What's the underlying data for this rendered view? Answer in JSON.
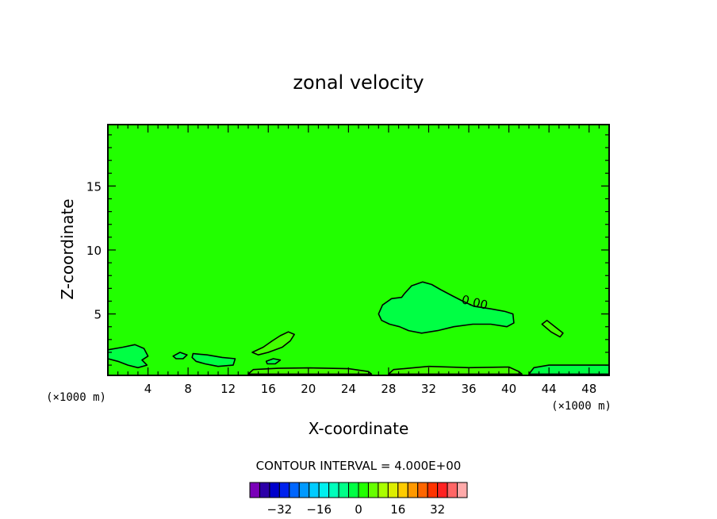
{
  "chart_data": {
    "type": "contour",
    "title": "zonal velocity",
    "xlabel": "X-coordinate",
    "ylabel": "Z-coordinate",
    "x_unit_label": "(×1000 m)",
    "xlim": [
      0,
      50
    ],
    "ylim": [
      0.2,
      19.8
    ],
    "x_ticks": [
      4,
      8,
      12,
      16,
      20,
      24,
      28,
      32,
      36,
      40,
      44,
      48
    ],
    "y_ticks": [
      5,
      10,
      15
    ],
    "field_color": "#22ff00",
    "contour_labels": [
      {
        "text": "0.00",
        "x": 36.5,
        "y": 5.6
      }
    ],
    "contour_interval_label": "CONTOUR INTERVAL = 4.000E+00",
    "colorbar": {
      "colors": [
        "#7a00b8",
        "#2c00a8",
        "#0000cc",
        "#0022ee",
        "#0066ff",
        "#0099ff",
        "#00ccff",
        "#00f0ee",
        "#00ffbb",
        "#00ff88",
        "#00ff44",
        "#22ff00",
        "#66ff00",
        "#aaff00",
        "#ddee00",
        "#ffcc00",
        "#ff9900",
        "#ff6600",
        "#ff3300",
        "#ff2222",
        "#ff6666",
        "#ffaaaa"
      ],
      "tick_values": [
        -32,
        -16,
        0,
        16,
        32
      ],
      "tick_labels": [
        "−32",
        "−16",
        "0",
        "16",
        "32"
      ],
      "range": [
        -44,
        44
      ]
    },
    "regions": [
      {
        "name": "region-negative-large",
        "color": "#00ff44",
        "points": [
          [
            27,
            5.0
          ],
          [
            27.4,
            5.7
          ],
          [
            28.3,
            6.2
          ],
          [
            29.3,
            6.3
          ],
          [
            29.6,
            6.6
          ],
          [
            30.3,
            7.2
          ],
          [
            31.4,
            7.5
          ],
          [
            32.3,
            7.3
          ],
          [
            33.2,
            6.9
          ],
          [
            34.4,
            6.4
          ],
          [
            35.4,
            6.0
          ],
          [
            36.5,
            5.6
          ],
          [
            38.2,
            5.4
          ],
          [
            39.6,
            5.2
          ],
          [
            40.4,
            5.0
          ],
          [
            40.5,
            4.3
          ],
          [
            39.8,
            4.0
          ],
          [
            38.2,
            4.2
          ],
          [
            36.4,
            4.2
          ],
          [
            34.5,
            4.0
          ],
          [
            32.9,
            3.7
          ],
          [
            31.3,
            3.5
          ],
          [
            30.0,
            3.7
          ],
          [
            29.1,
            4.0
          ],
          [
            28.1,
            4.2
          ],
          [
            27.3,
            4.5
          ]
        ]
      },
      {
        "name": "region-negative-left",
        "color": "#00ff44",
        "points": [
          [
            0,
            2.2
          ],
          [
            1.5,
            2.4
          ],
          [
            2.7,
            2.6
          ],
          [
            3.6,
            2.3
          ],
          [
            4.0,
            1.7
          ],
          [
            3.4,
            1.4
          ],
          [
            3.9,
            1.0
          ],
          [
            3.0,
            0.8
          ],
          [
            2.0,
            1.0
          ],
          [
            1.0,
            1.3
          ],
          [
            0,
            1.5
          ]
        ]
      },
      {
        "name": "region-negative-small-1",
        "color": "#00ff44",
        "points": [
          [
            6.5,
            1.7
          ],
          [
            7.2,
            2.0
          ],
          [
            7.9,
            1.8
          ],
          [
            7.5,
            1.5
          ],
          [
            6.8,
            1.5
          ]
        ]
      },
      {
        "name": "region-negative-small-2",
        "color": "#00ff44",
        "points": [
          [
            8.5,
            1.9
          ],
          [
            9.9,
            1.8
          ],
          [
            11.4,
            1.6
          ],
          [
            12.7,
            1.5
          ],
          [
            12.5,
            1.0
          ],
          [
            11.0,
            0.9
          ],
          [
            9.7,
            1.1
          ],
          [
            8.8,
            1.3
          ],
          [
            8.4,
            1.6
          ]
        ]
      },
      {
        "name": "region-negative-small-3",
        "color": "#00ff44",
        "points": [
          [
            15.8,
            1.3
          ],
          [
            16.5,
            1.5
          ],
          [
            17.2,
            1.4
          ],
          [
            16.7,
            1.1
          ],
          [
            15.9,
            1.1
          ]
        ]
      },
      {
        "name": "region-positive-1",
        "color": "#44ff00",
        "points": [
          [
            14.4,
            2.0
          ],
          [
            15.5,
            2.4
          ],
          [
            16.4,
            2.9
          ],
          [
            17.2,
            3.3
          ],
          [
            18.0,
            3.6
          ],
          [
            18.6,
            3.4
          ],
          [
            18.2,
            2.9
          ],
          [
            17.4,
            2.4
          ],
          [
            16.0,
            2.0
          ],
          [
            15.0,
            1.8
          ]
        ]
      },
      {
        "name": "region-positive-2",
        "color": "#44ff00",
        "points": [
          [
            43.3,
            4.2
          ],
          [
            43.8,
            4.5
          ],
          [
            44.6,
            4.0
          ],
          [
            45.4,
            3.5
          ],
          [
            45.1,
            3.2
          ],
          [
            44.2,
            3.6
          ]
        ]
      },
      {
        "name": "region-positive-3",
        "color": "#44ff00",
        "points": [
          [
            14.0,
            0.3
          ],
          [
            14.5,
            0.65
          ],
          [
            17.0,
            0.75
          ],
          [
            20.0,
            0.78
          ],
          [
            24.0,
            0.72
          ],
          [
            26.0,
            0.5
          ],
          [
            26.3,
            0.3
          ]
        ]
      },
      {
        "name": "region-positive-4",
        "color": "#44ff00",
        "points": [
          [
            28.0,
            0.3
          ],
          [
            28.5,
            0.65
          ],
          [
            32.0,
            0.9
          ],
          [
            36.0,
            0.8
          ],
          [
            40.0,
            0.85
          ],
          [
            41.0,
            0.5
          ],
          [
            41.3,
            0.3
          ]
        ]
      },
      {
        "name": "region-negative-bottom-right",
        "color": "#00ff44",
        "points": [
          [
            42.0,
            0.3
          ],
          [
            42.5,
            0.8
          ],
          [
            44.0,
            1.0
          ],
          [
            50.0,
            1.0
          ],
          [
            50.0,
            0.3
          ]
        ]
      }
    ]
  }
}
